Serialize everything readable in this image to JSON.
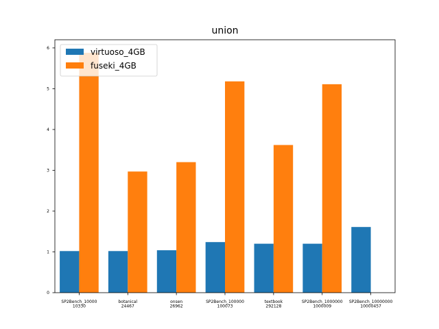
{
  "chart_data": {
    "type": "bar",
    "title": "union",
    "xlabel": "",
    "ylabel": "",
    "categories": [
      [
        "SP2Bench_10000",
        "10330"
      ],
      [
        "botanical",
        "24467"
      ],
      [
        "onsen",
        "26962"
      ],
      [
        "SP2Bench_100000",
        "100073"
      ],
      [
        "textbook",
        "292128"
      ],
      [
        "SP2Bench_1000000",
        "1000009"
      ],
      [
        "SP2Bench_10000000",
        "10000457"
      ]
    ],
    "series": [
      {
        "name": "virtuoso_4GB",
        "color": "#1f77b4",
        "values": [
          1.02,
          1.02,
          1.04,
          1.24,
          1.2,
          1.2,
          1.61
        ]
      },
      {
        "name": "fuseki_4GB",
        "color": "#ff7f0e",
        "values": [
          5.88,
          2.97,
          3.2,
          5.18,
          3.62,
          5.11,
          null
        ]
      }
    ],
    "ylim": [
      0,
      6.2
    ],
    "yticks": [
      0,
      1,
      2,
      3,
      4,
      5,
      6
    ],
    "legend": "top-left",
    "grid": false
  }
}
